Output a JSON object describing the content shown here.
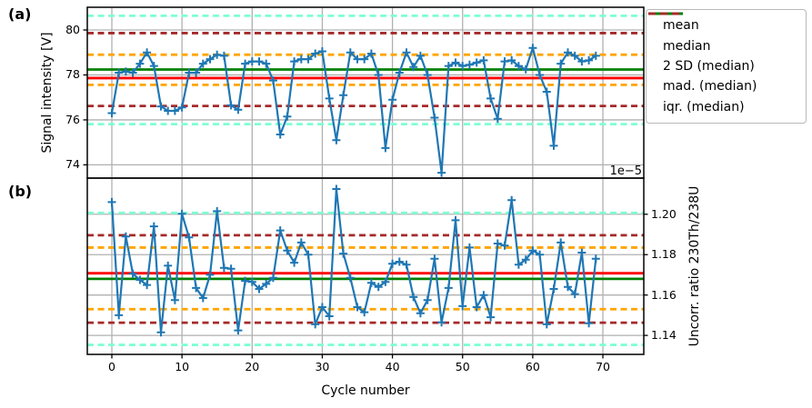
{
  "figure": {
    "panel_a_label": "(a)",
    "panel_b_label": "(b)",
    "xlabel": "Cycle number",
    "offset_text": "1e−5",
    "background": "#ffffff",
    "grid_color": "#b0b0b0",
    "spine_color": "#000000",
    "series_color": "#1f77b4",
    "legend": {
      "entries": [
        {
          "label": "mean",
          "color": "#ff0000",
          "dashed": false
        },
        {
          "label": "median",
          "color": "#008000",
          "dashed": false
        },
        {
          "label": "2 SD (median)",
          "color": "#7fffd4",
          "dashed": true
        },
        {
          "label": "mad. (median)",
          "color": "#ffa500",
          "dashed": true
        },
        {
          "label": "iqr. (median)",
          "color": "#a52a2a",
          "dashed": true
        }
      ]
    }
  },
  "chart_data": [
    {
      "type": "line",
      "panel": "a",
      "title": "",
      "xlabel": "Cycle number",
      "ylabel": "Signal intensity [V]",
      "marker": "+",
      "grid": true,
      "y_axis_side": "left",
      "xlim": [
        -3.5,
        75.83
      ],
      "ylim": [
        73.41,
        81.01
      ],
      "xticks": [
        0,
        10,
        20,
        30,
        40,
        50,
        60,
        70
      ],
      "xtick_labels": [
        "0",
        "10",
        "20",
        "30",
        "40",
        "50",
        "60",
        "70"
      ],
      "yticks": [
        74,
        76,
        78,
        80
      ],
      "ytick_labels": [
        "74",
        "76",
        "78",
        "80"
      ],
      "stat_lines": {
        "mean": 77.86,
        "median": 78.24,
        "sd2": [
          75.81,
          80.63
        ],
        "mad": [
          77.56,
          78.9
        ],
        "iqr": [
          76.62,
          79.86
        ]
      },
      "x": [
        0,
        1,
        2,
        3,
        4,
        5,
        6,
        7,
        8,
        9,
        10,
        11,
        12,
        13,
        14,
        15,
        16,
        17,
        18,
        19,
        20,
        21,
        22,
        23,
        24,
        25,
        26,
        27,
        28,
        29,
        30,
        31,
        32,
        33,
        34,
        35,
        36,
        37,
        38,
        39,
        40,
        41,
        42,
        43,
        44,
        45,
        46,
        47,
        48,
        49,
        50,
        51,
        52,
        53,
        54,
        55,
        56,
        57,
        58,
        59,
        60,
        61,
        62,
        63,
        64,
        65,
        66,
        67,
        68,
        69
      ],
      "values": [
        76.3,
        78.1,
        78.15,
        78.1,
        78.5,
        79.0,
        78.4,
        76.6,
        76.4,
        76.4,
        76.55,
        78.1,
        78.1,
        78.5,
        78.7,
        78.9,
        78.85,
        76.65,
        76.45,
        78.5,
        78.6,
        78.6,
        78.5,
        77.75,
        75.35,
        76.15,
        78.6,
        78.7,
        78.7,
        78.95,
        79.05,
        76.95,
        75.1,
        77.1,
        79.0,
        78.7,
        78.7,
        78.95,
        78.0,
        74.75,
        76.9,
        78.1,
        79.0,
        78.35,
        78.85,
        78.0,
        76.1,
        73.65,
        78.4,
        78.55,
        78.4,
        78.45,
        78.55,
        78.65,
        76.95,
        76.05,
        78.6,
        78.65,
        78.4,
        78.25,
        79.2,
        78.0,
        77.25,
        74.85,
        78.5,
        79.0,
        78.85,
        78.6,
        78.65,
        78.85
      ]
    },
    {
      "type": "line",
      "panel": "b",
      "title": "",
      "xlabel": "Cycle number",
      "ylabel": "Uncorr. ratio 230Th/238U",
      "y_scale_factor": "1e−5",
      "marker": "+",
      "grid": true,
      "y_axis_side": "right",
      "xlim": [
        -3.5,
        75.83
      ],
      "ylim": [
        1.1306,
        1.2179
      ],
      "xticks": [
        0,
        10,
        20,
        30,
        40,
        50,
        60,
        70
      ],
      "xtick_labels": [
        "0",
        "10",
        "20",
        "30",
        "40",
        "50",
        "60",
        "70"
      ],
      "yticks": [
        1.14,
        1.16,
        1.18,
        1.2
      ],
      "ytick_labels": [
        "1.14",
        "1.16",
        "1.18",
        "1.20"
      ],
      "stat_lines": {
        "mean": 1.1708,
        "median": 1.168,
        "sd2": [
          1.1353,
          1.2007
        ],
        "mad": [
          1.153,
          1.1835
        ],
        "iqr": [
          1.1463,
          1.1896
        ]
      },
      "x": [
        0,
        1,
        2,
        3,
        4,
        5,
        6,
        7,
        8,
        9,
        10,
        11,
        12,
        13,
        14,
        15,
        16,
        17,
        18,
        19,
        20,
        21,
        22,
        23,
        24,
        25,
        26,
        27,
        28,
        29,
        30,
        31,
        32,
        33,
        34,
        35,
        36,
        37,
        38,
        39,
        40,
        41,
        42,
        43,
        44,
        45,
        46,
        47,
        48,
        49,
        50,
        51,
        52,
        53,
        54,
        55,
        56,
        57,
        58,
        59,
        60,
        61,
        62,
        63,
        64,
        65,
        66,
        67,
        68,
        69
      ],
      "values": [
        1.206,
        1.15,
        1.189,
        1.1705,
        1.1675,
        1.165,
        1.194,
        1.1415,
        1.1745,
        1.1575,
        1.2002,
        1.1885,
        1.1635,
        1.1585,
        1.17,
        1.2015,
        1.1735,
        1.173,
        1.1425,
        1.167,
        1.1665,
        1.163,
        1.1655,
        1.1685,
        1.192,
        1.182,
        1.176,
        1.186,
        1.18,
        1.1455,
        1.154,
        1.1495,
        1.2125,
        1.1805,
        1.1685,
        1.154,
        1.1515,
        1.166,
        1.164,
        1.1665,
        1.1755,
        1.1765,
        1.175,
        1.159,
        1.151,
        1.1575,
        1.178,
        1.1465,
        1.1635,
        1.197,
        1.1545,
        1.1835,
        1.154,
        1.16,
        1.149,
        1.1855,
        1.1845,
        1.207,
        1.175,
        1.1775,
        1.182,
        1.18,
        1.1455,
        1.163,
        1.186,
        1.164,
        1.1605,
        1.181,
        1.146,
        1.178
      ]
    }
  ]
}
